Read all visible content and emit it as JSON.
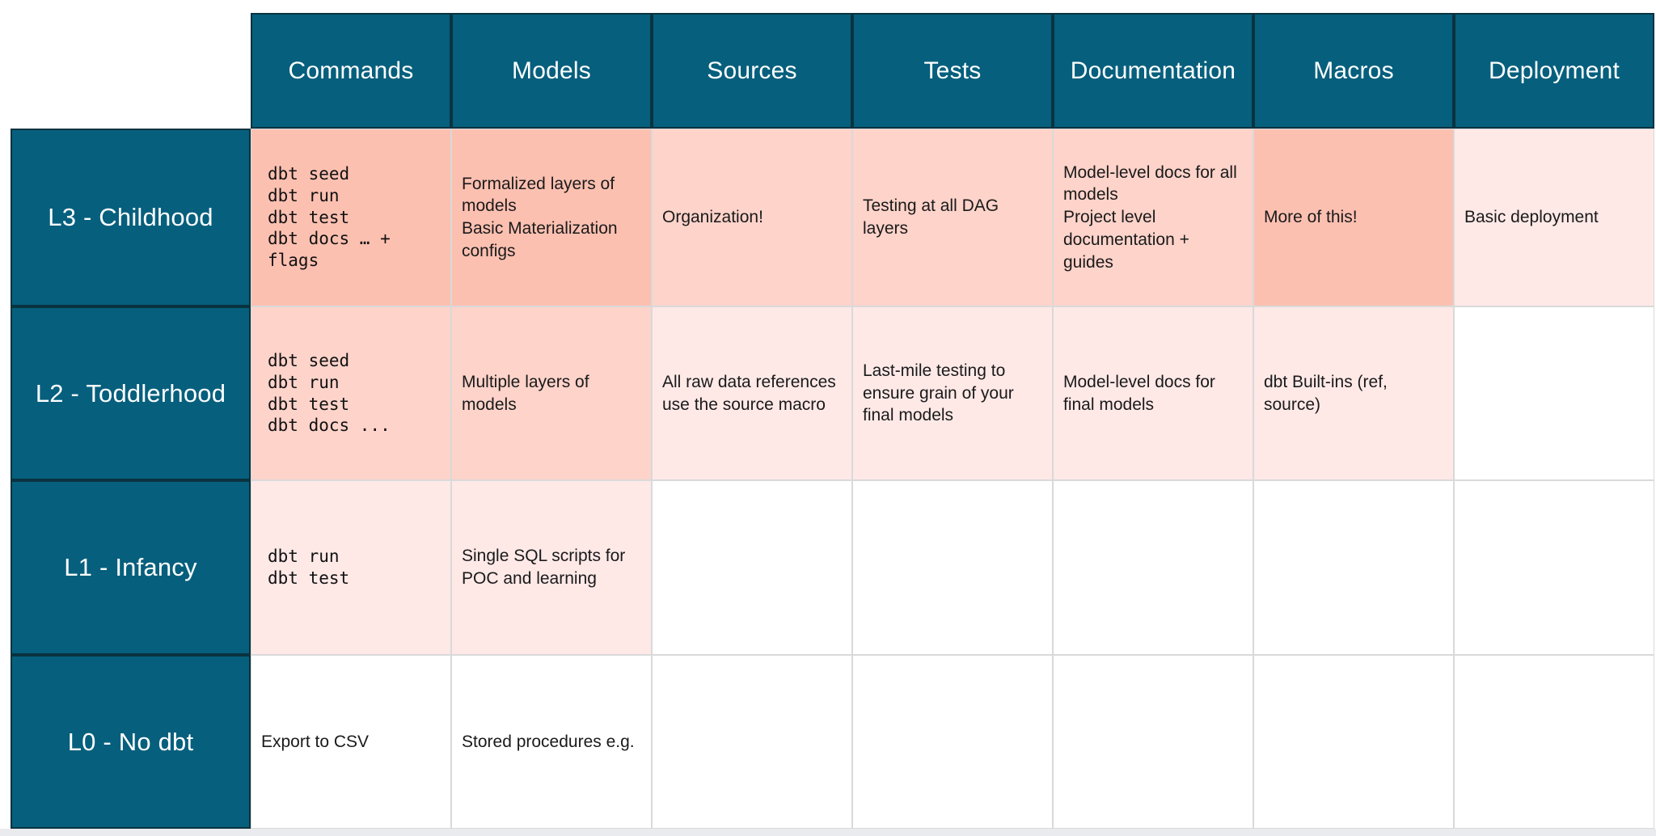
{
  "colors": {
    "header_teal": "#065f7d",
    "header_border": "#0a3340",
    "header_text": "#ffffff",
    "cell_border": "#d9d9d9",
    "cell_text": "#1a1a1a",
    "shade_dark": "#fcc0b1",
    "shade_mid": "#fdd3ca",
    "shade_light": "#fee9e7",
    "shade_white": "#ffffff",
    "bottom_strip": "#e9ebee"
  },
  "table": {
    "columns": [
      "Commands",
      "Models",
      "Sources",
      "Tests",
      "Documentation",
      "Macros",
      "Deployment"
    ],
    "rows": [
      {
        "label": "L3 - Childhood",
        "cells": [
          {
            "text": "dbt seed\ndbt run\ndbt test\ndbt docs … +\nflags",
            "shade": "dark",
            "mono": true
          },
          {
            "text": "Formalized layers of models\nBasic Materialization configs",
            "shade": "dark",
            "mono": false
          },
          {
            "text": "Organization!",
            "shade": "mid",
            "mono": false
          },
          {
            "text": "Testing at all DAG layers",
            "shade": "mid",
            "mono": false
          },
          {
            "text": "Model-level docs for all models\nProject level documentation + guides",
            "shade": "mid",
            "mono": false
          },
          {
            "text": "More of this!",
            "shade": "dark",
            "mono": false
          },
          {
            "text": "Basic deployment",
            "shade": "light",
            "mono": false
          }
        ]
      },
      {
        "label": "L2 - Toddlerhood",
        "cells": [
          {
            "text": "dbt seed\ndbt run\ndbt test\ndbt docs ...",
            "shade": "mid",
            "mono": true
          },
          {
            "text": "Multiple layers of models",
            "shade": "mid",
            "mono": false
          },
          {
            "text": "All raw data references use the source macro",
            "shade": "light",
            "mono": false
          },
          {
            "text": "Last-mile testing to ensure grain of your final models",
            "shade": "light",
            "mono": false
          },
          {
            "text": "Model-level docs for final models",
            "shade": "light",
            "mono": false
          },
          {
            "text": "dbt Built-ins (ref, source)",
            "shade": "light",
            "mono": false
          },
          {
            "text": "",
            "shade": "white",
            "mono": false
          }
        ]
      },
      {
        "label": "L1 - Infancy",
        "cells": [
          {
            "text": "dbt run\ndbt test",
            "shade": "light",
            "mono": true
          },
          {
            "text": "Single SQL scripts for POC and learning",
            "shade": "light",
            "mono": false
          },
          {
            "text": "",
            "shade": "white",
            "mono": false
          },
          {
            "text": "",
            "shade": "white",
            "mono": false
          },
          {
            "text": "",
            "shade": "white",
            "mono": false
          },
          {
            "text": "",
            "shade": "white",
            "mono": false
          },
          {
            "text": "",
            "shade": "white",
            "mono": false
          }
        ]
      },
      {
        "label": "L0 - No dbt",
        "cells": [
          {
            "text": "Export to CSV",
            "shade": "white",
            "mono": false
          },
          {
            "text": "Stored procedures e.g.",
            "shade": "white",
            "mono": false
          },
          {
            "text": "",
            "shade": "white",
            "mono": false
          },
          {
            "text": "",
            "shade": "white",
            "mono": false
          },
          {
            "text": "",
            "shade": "white",
            "mono": false
          },
          {
            "text": "",
            "shade": "white",
            "mono": false
          },
          {
            "text": "",
            "shade": "white",
            "mono": false
          }
        ]
      }
    ]
  }
}
